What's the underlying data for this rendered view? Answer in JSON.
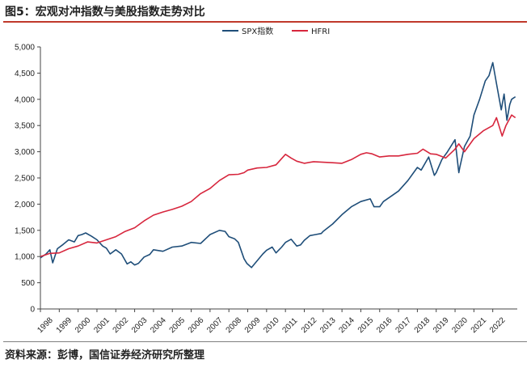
{
  "figure": {
    "title": "图5：宏观对冲指数与美股指数走势对比",
    "source": "资料来源：彭博，国信证券经济研究所整理"
  },
  "colors": {
    "spx": "#1f4e79",
    "hfri": "#d7263d",
    "accent": "#c0392b"
  },
  "chart_data": {
    "type": "line",
    "title": "",
    "xlabel": "",
    "ylabel": "",
    "ylim": [
      0,
      5000
    ],
    "xlim": [
      1998,
      2023.3
    ],
    "grid": false,
    "legend": "top-center",
    "y_ticks": [
      0,
      500,
      1000,
      1500,
      2000,
      2500,
      3000,
      3500,
      4000,
      4500,
      5000
    ],
    "y_tick_labels": [
      "0",
      "500",
      "1,000",
      "1,500",
      "2,000",
      "2,500",
      "3,000",
      "3,500",
      "4,000",
      "4,500",
      "5,000"
    ],
    "x_tick_labels": [
      "1998",
      "1999",
      "2000",
      "2001",
      "2002",
      "2003",
      "2004",
      "2005",
      "2006",
      "2007",
      "2008",
      "2009",
      "2010",
      "2011",
      "2012",
      "2013",
      "2014",
      "2015",
      "2016",
      "2017",
      "2018",
      "2019",
      "2020",
      "2021",
      "2022"
    ],
    "series": [
      {
        "name": "SPX指数",
        "color": "#1f4e79",
        "x": [
          1998.0,
          1998.3,
          1998.5,
          1998.65,
          1998.9,
          1999.2,
          1999.5,
          1999.8,
          2000.0,
          2000.2,
          2000.4,
          2000.7,
          2001.0,
          2001.3,
          2001.5,
          2001.7,
          2002.0,
          2002.3,
          2002.6,
          2002.8,
          2003.0,
          2003.2,
          2003.5,
          2003.8,
          2004.0,
          2004.5,
          2005.0,
          2005.5,
          2006.0,
          2006.5,
          2007.0,
          2007.5,
          2007.8,
          2008.0,
          2008.3,
          2008.5,
          2008.8,
          2008.95,
          2009.2,
          2009.5,
          2009.8,
          2010.0,
          2010.3,
          2010.5,
          2010.8,
          2011.0,
          2011.3,
          2011.6,
          2011.8,
          2012.0,
          2012.3,
          2012.6,
          2012.9,
          2013.0,
          2013.5,
          2014.0,
          2014.5,
          2015.0,
          2015.5,
          2015.7,
          2016.0,
          2016.2,
          2016.6,
          2017.0,
          2017.5,
          2018.0,
          2018.2,
          2018.6,
          2018.9,
          2019.0,
          2019.3,
          2019.6,
          2020.0,
          2020.2,
          2020.25,
          2020.5,
          2020.8,
          2021.0,
          2021.3,
          2021.6,
          2021.8,
          2022.0,
          2022.2,
          2022.45,
          2022.6,
          2022.75,
          2022.9,
          2023.0,
          2023.2
        ],
        "y": [
          975,
          1050,
          1130,
          880,
          1150,
          1230,
          1320,
          1280,
          1400,
          1420,
          1450,
          1390,
          1320,
          1200,
          1160,
          1050,
          1130,
          1050,
          860,
          900,
          840,
          870,
          990,
          1040,
          1130,
          1100,
          1180,
          1200,
          1270,
          1250,
          1420,
          1500,
          1480,
          1380,
          1340,
          1270,
          960,
          870,
          790,
          920,
          1050,
          1120,
          1180,
          1070,
          1180,
          1270,
          1330,
          1200,
          1220,
          1310,
          1400,
          1420,
          1440,
          1480,
          1620,
          1800,
          1950,
          2050,
          2100,
          1950,
          1950,
          2050,
          2150,
          2250,
          2450,
          2700,
          2650,
          2900,
          2550,
          2600,
          2850,
          3000,
          3230,
          2600,
          2700,
          3100,
          3300,
          3700,
          4000,
          4350,
          4450,
          4700,
          4300,
          3800,
          4100,
          3600,
          3900,
          4000,
          4050
        ]
      },
      {
        "name": "HFRI",
        "color": "#d7263d",
        "x": [
          1998.0,
          1998.5,
          1999.0,
          1999.5,
          2000.0,
          2000.5,
          2001.0,
          2001.5,
          2002.0,
          2002.5,
          2003.0,
          2003.5,
          2004.0,
          2004.5,
          2005.0,
          2005.5,
          2006.0,
          2006.5,
          2007.0,
          2007.5,
          2008.0,
          2008.5,
          2008.8,
          2009.0,
          2009.5,
          2010.0,
          2010.5,
          2011.0,
          2011.3,
          2011.6,
          2012.0,
          2012.5,
          2013.0,
          2013.5,
          2014.0,
          2014.5,
          2015.0,
          2015.3,
          2015.6,
          2016.0,
          2016.5,
          2017.0,
          2017.5,
          2018.0,
          2018.3,
          2018.7,
          2019.0,
          2019.5,
          2020.0,
          2020.2,
          2020.5,
          2021.0,
          2021.5,
          2022.0,
          2022.2,
          2022.5,
          2022.7,
          2023.0,
          2023.2
        ],
        "y": [
          1000,
          1060,
          1070,
          1150,
          1200,
          1280,
          1260,
          1320,
          1380,
          1480,
          1550,
          1680,
          1790,
          1850,
          1900,
          1960,
          2050,
          2200,
          2300,
          2450,
          2560,
          2570,
          2600,
          2650,
          2690,
          2700,
          2750,
          2950,
          2880,
          2820,
          2780,
          2810,
          2800,
          2790,
          2780,
          2850,
          2950,
          2980,
          2960,
          2900,
          2920,
          2920,
          2950,
          2970,
          3050,
          2960,
          2950,
          2880,
          3050,
          3150,
          3000,
          3250,
          3400,
          3500,
          3650,
          3300,
          3500,
          3700,
          3650
        ]
      }
    ]
  }
}
